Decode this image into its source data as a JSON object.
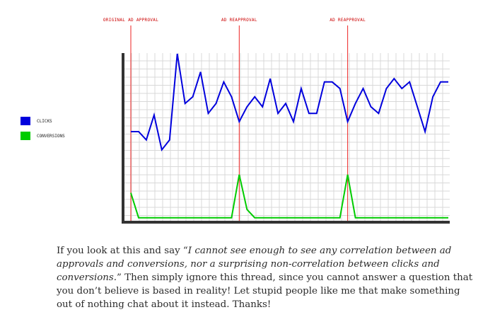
{
  "chart_data": {
    "type": "line",
    "x": [
      0,
      1,
      2,
      3,
      4,
      5,
      6,
      7,
      8,
      9,
      10,
      11,
      12,
      13,
      14,
      15,
      16,
      17,
      18,
      19,
      20,
      21,
      22,
      23,
      24,
      25,
      26,
      27,
      28,
      29,
      30,
      31,
      32,
      33,
      34,
      35,
      36,
      37,
      38,
      39,
      40,
      41
    ],
    "series": [
      {
        "name": "CLICKS",
        "color": "#0000dd",
        "values": [
          53,
          53,
          48,
          63,
          42,
          48,
          100,
          70,
          74,
          89,
          64,
          70,
          83,
          74,
          59,
          68,
          74,
          68,
          85,
          64,
          70,
          59,
          79,
          64,
          64,
          83,
          83,
          79,
          59,
          70,
          79,
          68,
          64,
          79,
          85,
          79,
          83,
          68,
          53,
          74,
          83,
          83
        ]
      },
      {
        "name": "CONVERSIONS",
        "color": "#00cc00",
        "values": [
          16,
          1,
          1,
          1,
          1,
          1,
          1,
          1,
          1,
          1,
          1,
          1,
          1,
          1,
          27,
          6,
          1,
          1,
          1,
          1,
          1,
          1,
          1,
          1,
          1,
          1,
          1,
          1,
          27,
          1,
          1,
          1,
          1,
          1,
          1,
          1,
          1,
          1,
          1,
          1,
          1,
          1
        ]
      }
    ],
    "ylim": [
      0,
      100
    ],
    "grid": true,
    "legend_position": "left",
    "annotations": [
      {
        "x": 0,
        "label": "ORIGINAL AD APPROVAL"
      },
      {
        "x": 14,
        "label": "AD REAPPROVAL"
      },
      {
        "x": 28,
        "label": "AD REAPPROVAL"
      }
    ],
    "colors": {
      "annotation_line": "#ee2222",
      "grid": "#d8d8d8",
      "axis": "#333333"
    }
  },
  "caption": {
    "lead": "If you look at this and say “",
    "quote": "I cannot see enough to see any correlation between ad approvals and conversions, nor a surprising non-correlation between clicks and conversions.",
    "rest": "” Then simply ignore this thread, since you cannot answer a question that you don’t believe is based in reality! Let stupid people like me that make something out of nothing chat about it instead. Thanks!"
  }
}
